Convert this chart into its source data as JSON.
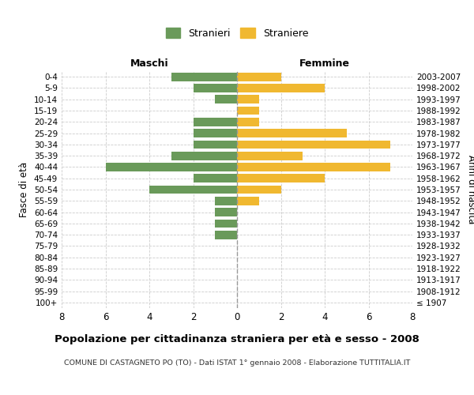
{
  "age_groups": [
    "100+",
    "95-99",
    "90-94",
    "85-89",
    "80-84",
    "75-79",
    "70-74",
    "65-69",
    "60-64",
    "55-59",
    "50-54",
    "45-49",
    "40-44",
    "35-39",
    "30-34",
    "25-29",
    "20-24",
    "15-19",
    "10-14",
    "5-9",
    "0-4"
  ],
  "birth_years": [
    "≤ 1907",
    "1908-1912",
    "1913-1917",
    "1918-1922",
    "1923-1927",
    "1928-1932",
    "1933-1937",
    "1938-1942",
    "1943-1947",
    "1948-1952",
    "1953-1957",
    "1958-1962",
    "1963-1967",
    "1968-1972",
    "1973-1977",
    "1978-1982",
    "1983-1987",
    "1988-1992",
    "1993-1997",
    "1998-2002",
    "2003-2007"
  ],
  "maschi": [
    0,
    0,
    0,
    0,
    0,
    0,
    1,
    1,
    1,
    1,
    4,
    2,
    6,
    3,
    2,
    2,
    2,
    0,
    1,
    2,
    3
  ],
  "femmine": [
    0,
    0,
    0,
    0,
    0,
    0,
    0,
    0,
    0,
    1,
    2,
    4,
    7,
    3,
    7,
    5,
    1,
    1,
    1,
    4,
    2
  ],
  "color_maschi": "#6a9a5a",
  "color_femmine": "#f0b830",
  "title": "Popolazione per cittadinanza straniera per età e sesso - 2008",
  "subtitle": "COMUNE DI CASTAGNETO PO (TO) - Dati ISTAT 1° gennaio 2008 - Elaborazione TUTTITALIA.IT",
  "xlabel_left": "Maschi",
  "xlabel_right": "Femmine",
  "ylabel_left": "Fasce di età",
  "ylabel_right": "Anni di nascita",
  "legend_maschi": "Stranieri",
  "legend_femmine": "Straniere",
  "xlim": 8,
  "background_color": "#ffffff",
  "grid_color": "#cccccc"
}
